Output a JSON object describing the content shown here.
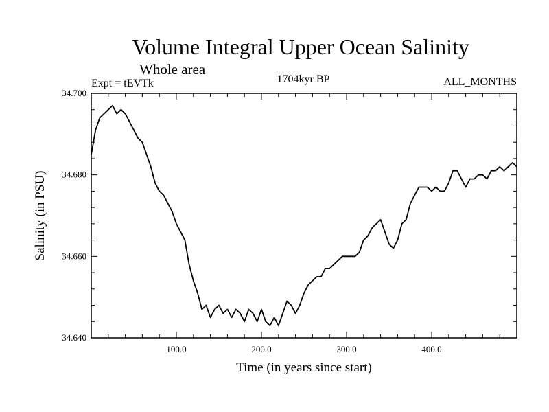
{
  "chart_data": {
    "type": "line",
    "title": "Volume Integral Upper Ocean Salinity",
    "subtitle": "Whole area",
    "experiment_label": "Expt = tEVTk",
    "period_label": "1704kyr BP",
    "months_label": "ALL_MONTHS",
    "xlabel": "Time (in years since start)",
    "ylabel": "Salinity (in PSU)",
    "xlim": [
      0,
      500
    ],
    "ylim": [
      34.64,
      34.7
    ],
    "x_ticks": [
      100,
      200,
      300,
      400
    ],
    "x_tick_labels": [
      "100.0",
      "200.0",
      "300.0",
      "400.0"
    ],
    "y_ticks": [
      34.64,
      34.66,
      34.68,
      34.7
    ],
    "y_tick_labels": [
      "34.640",
      "34.660",
      "34.680",
      "34.700"
    ],
    "series": [
      {
        "name": "salinity",
        "color": "#000000",
        "x": [
          0,
          5,
          10,
          15,
          20,
          25,
          30,
          35,
          40,
          45,
          50,
          55,
          60,
          65,
          70,
          75,
          80,
          85,
          90,
          95,
          100,
          105,
          110,
          115,
          120,
          125,
          130,
          135,
          140,
          145,
          150,
          155,
          160,
          165,
          170,
          175,
          180,
          185,
          190,
          195,
          200,
          205,
          210,
          215,
          220,
          225,
          230,
          235,
          240,
          245,
          250,
          255,
          260,
          265,
          270,
          275,
          280,
          285,
          290,
          295,
          300,
          305,
          310,
          315,
          320,
          325,
          330,
          335,
          340,
          345,
          350,
          355,
          360,
          365,
          370,
          375,
          380,
          385,
          390,
          395,
          400,
          405,
          410,
          415,
          420,
          425,
          430,
          435,
          440,
          445,
          450,
          455,
          460,
          465,
          470,
          475,
          480,
          485,
          490,
          495,
          500
        ],
        "values": [
          34.685,
          34.691,
          34.694,
          34.695,
          34.696,
          34.697,
          34.695,
          34.696,
          34.695,
          34.693,
          34.691,
          34.689,
          34.688,
          34.685,
          34.682,
          34.678,
          34.676,
          34.675,
          34.673,
          34.671,
          34.668,
          34.666,
          34.664,
          34.658,
          34.654,
          34.651,
          34.647,
          34.648,
          34.645,
          34.647,
          34.648,
          34.646,
          34.647,
          34.645,
          34.647,
          34.646,
          34.644,
          34.647,
          34.646,
          34.644,
          34.647,
          34.644,
          34.643,
          34.645,
          34.643,
          34.646,
          34.649,
          34.648,
          34.646,
          34.648,
          34.651,
          34.653,
          34.654,
          34.655,
          34.655,
          34.657,
          34.657,
          34.658,
          34.659,
          34.66,
          34.66,
          34.66,
          34.66,
          34.661,
          34.664,
          34.665,
          34.667,
          34.668,
          34.669,
          34.666,
          34.663,
          34.662,
          34.664,
          34.668,
          34.669,
          34.673,
          34.675,
          34.677,
          34.677,
          34.677,
          34.676,
          34.677,
          34.676,
          34.676,
          34.678,
          34.681,
          34.681,
          34.679,
          34.677,
          34.679,
          34.679,
          34.68,
          34.68,
          34.679,
          34.681,
          34.681,
          34.682,
          34.681,
          34.682,
          34.683,
          34.682
        ]
      }
    ]
  }
}
